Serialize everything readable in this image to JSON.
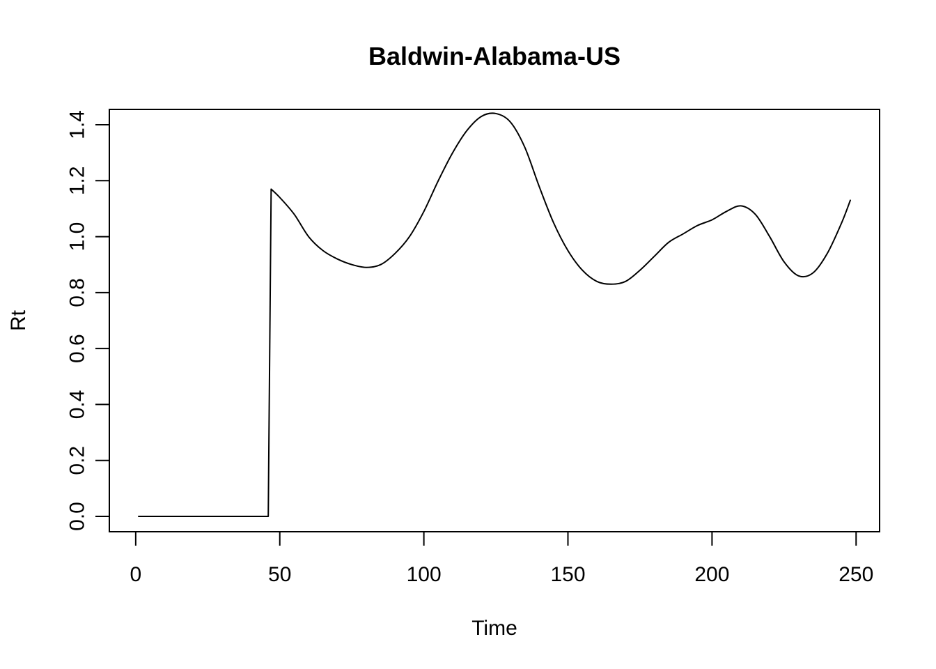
{
  "chart_data": {
    "type": "line",
    "title": "Baldwin-Alabama-US",
    "xlabel": "Time",
    "ylabel": "Rt",
    "xlim": [
      1,
      248
    ],
    "ylim": [
      0,
      1.4
    ],
    "x_ticks": [
      0,
      50,
      100,
      150,
      200,
      250
    ],
    "x_tick_labels": [
      "0",
      "50",
      "100",
      "150",
      "200",
      "250"
    ],
    "y_ticks": [
      0,
      0.2,
      0.4,
      0.6,
      0.8,
      1.0,
      1.2,
      1.4
    ],
    "y_tick_labels": [
      "0.0",
      "0.2",
      "0.4",
      "0.6",
      "0.8",
      "1.0",
      "1.2",
      "1.4"
    ],
    "grid": false,
    "legend": "none",
    "color": "#000000",
    "series": [
      {
        "x": [
          1,
          10,
          20,
          30,
          40,
          46,
          47,
          50,
          55,
          60,
          65,
          70,
          75,
          80,
          85,
          90,
          95,
          100,
          105,
          110,
          115,
          120,
          125,
          130,
          135,
          140,
          145,
          150,
          155,
          160,
          165,
          170,
          175,
          180,
          185,
          190,
          195,
          200,
          205,
          210,
          215,
          220,
          225,
          230,
          235,
          240,
          245,
          248
        ],
        "y": [
          0,
          0,
          0,
          0,
          0,
          0,
          1.17,
          1.14,
          1.08,
          1.0,
          0.95,
          0.92,
          0.9,
          0.89,
          0.9,
          0.94,
          1.0,
          1.09,
          1.2,
          1.3,
          1.38,
          1.43,
          1.44,
          1.41,
          1.32,
          1.18,
          1.05,
          0.95,
          0.88,
          0.84,
          0.83,
          0.84,
          0.88,
          0.93,
          0.98,
          1.01,
          1.04,
          1.06,
          1.09,
          1.11,
          1.08,
          1.0,
          0.91,
          0.86,
          0.87,
          0.94,
          1.05,
          1.13
        ]
      }
    ]
  }
}
